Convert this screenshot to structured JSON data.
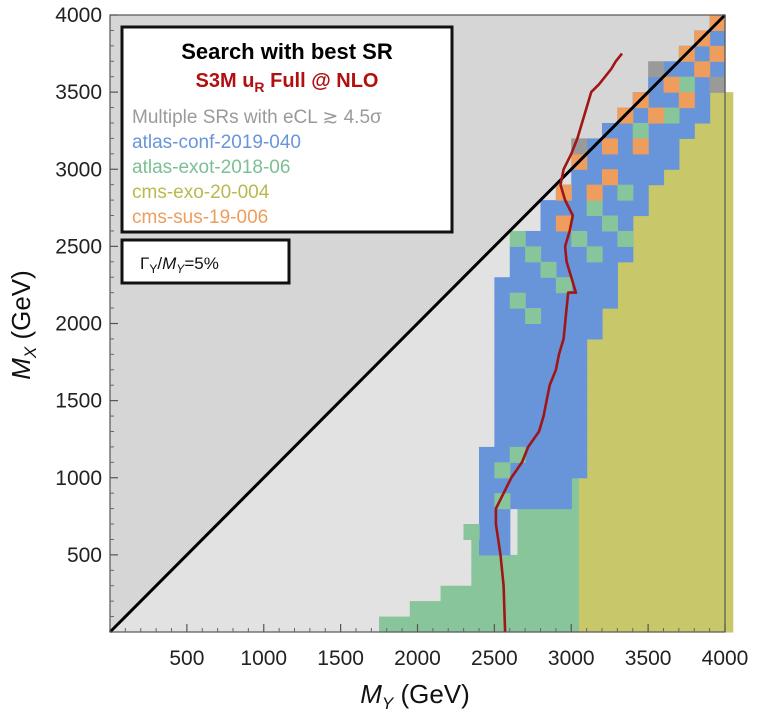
{
  "chart_data": {
    "type": "heatmap",
    "xlabel": "M_Y (GeV)",
    "ylabel": "M_X (GeV)",
    "xlim": [
      0,
      4000
    ],
    "ylim": [
      0,
      4000
    ],
    "xticks": [
      500,
      1000,
      1500,
      2000,
      2500,
      3000,
      3500,
      4000
    ],
    "yticks": [
      500,
      1000,
      1500,
      2000,
      2500,
      3000,
      3500,
      4000
    ],
    "cell_size_gev": 100,
    "legend": {
      "title": "Search with best SR",
      "subtitle": "S3M u_R Full @ NLO",
      "entries": [
        {
          "key": "multi",
          "label": "Multiple SRs with eCL ≳ 4.5σ",
          "color": "#9a9a9a"
        },
        {
          "key": "atlas19",
          "label": "atlas-conf-2019-040",
          "color": "#6895d9"
        },
        {
          "key": "atlas18",
          "label": "atlas-exot-2018-06",
          "color": "#88c59b"
        },
        {
          "key": "cms20",
          "label": "cms-exo-20-004",
          "color": "#c8c86a"
        },
        {
          "key": "cms19",
          "label": "cms-sus-19-006",
          "color": "#ee9d5c"
        }
      ]
    },
    "annotation": "Γ_Y/M_Y=5%",
    "regions": {
      "forbidden_above_diagonal_color": "#d6d6d6",
      "no_exclusion_color": "#e2e2e2",
      "diagonal": "M_X = M_Y"
    },
    "region_rows": [
      {
        "my": [
          1800,
          2900
        ],
        "mx": [
          100,
          200
        ],
        "search": "atlas-exot-2018-06"
      },
      {
        "my": [
          2900,
          3050
        ],
        "mx": [
          100,
          200
        ],
        "search": "cms-exo-20-004"
      },
      {
        "my": [
          1750,
          2700
        ],
        "mx": [
          0,
          100
        ],
        "search": "atlas-exot-2018-06"
      },
      {
        "my": [
          2300,
          3050
        ],
        "mx": [
          200,
          600
        ],
        "search": "atlas-exot-2018-06"
      },
      {
        "my": [
          3050,
          4000
        ],
        "mx": [
          0,
          1000
        ],
        "search": "cms-exo-20-004"
      }
    ],
    "series": [
      {
        "name": "S3M u_R Full @ NLO",
        "color": "#a01515",
        "x": [
          2570,
          2560,
          2540,
          2510,
          2510,
          2560,
          2610,
          2680,
          2720,
          2790,
          2820,
          2840,
          2860,
          2900,
          2920,
          2950,
          2960,
          2970,
          2980,
          3030,
          3000,
          2970,
          2960,
          2990,
          3010,
          2960,
          2930,
          2950,
          3000,
          3040,
          3070,
          3100,
          3130,
          3180,
          3220,
          3260,
          3290,
          3330
        ],
        "y": [
          0,
          300,
          500,
          700,
          800,
          900,
          1000,
          1100,
          1200,
          1300,
          1400,
          1500,
          1600,
          1700,
          1800,
          1900,
          2000,
          2100,
          2200,
          2200,
          2300,
          2400,
          2500,
          2600,
          2700,
          2800,
          2900,
          3000,
          3100,
          3200,
          3300,
          3400,
          3500,
          3550,
          3600,
          3650,
          3700,
          3750
        ]
      }
    ],
    "grid": false
  }
}
